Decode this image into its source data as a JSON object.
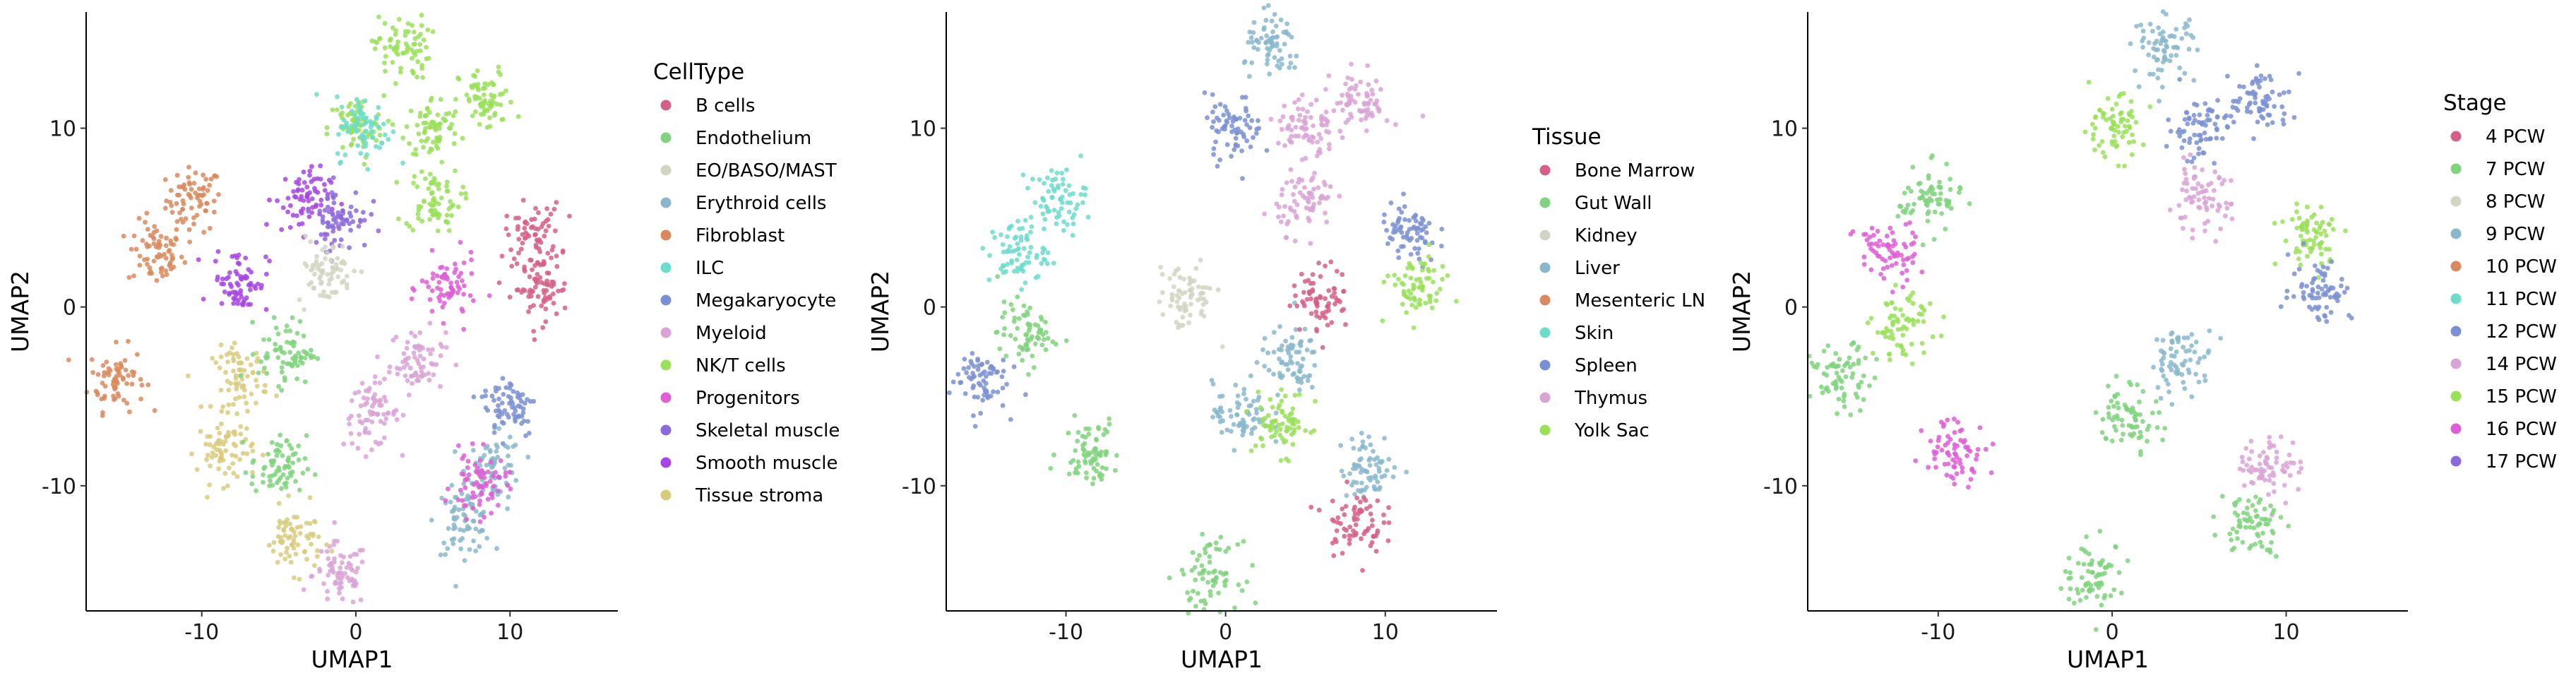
{
  "chart_data": [
    {
      "type": "scatter",
      "xlabel": "UMAP1",
      "ylabel": "UMAP2",
      "xlim": [
        -17.5,
        17.0
      ],
      "ylim": [
        -17.0,
        16.5
      ],
      "xticks": [
        -10,
        0,
        10
      ],
      "yticks": [
        -10,
        0,
        10
      ],
      "xtick_labels": [
        "-10",
        "0",
        "10"
      ],
      "ytick_labels": [
        "-10",
        "0",
        "10"
      ],
      "grid": false,
      "legend": {
        "title": "CellType",
        "placement": "right",
        "items": [
          {
            "label": "B cells",
            "color": "#D65F86"
          },
          {
            "label": "Endothelium",
            "color": "#7FD47D"
          },
          {
            "label": "EO/BASO/MAST",
            "color": "#D2D5C2"
          },
          {
            "label": "Erythroid cells",
            "color": "#8AB8CB"
          },
          {
            "label": "Fibroblast",
            "color": "#D9895D"
          },
          {
            "label": "ILC",
            "color": "#6CDCCB"
          },
          {
            "label": "Megakaryocyte",
            "color": "#7A90D2"
          },
          {
            "label": "Myeloid",
            "color": "#D9A3D6"
          },
          {
            "label": "NK/T cells",
            "color": "#9AE159"
          },
          {
            "label": "Progenitors",
            "color": "#DD5ED6"
          },
          {
            "label": "Skeletal muscle",
            "color": "#8C6ADA"
          },
          {
            "label": "Smooth muscle",
            "color": "#A645E3"
          },
          {
            "label": "Tissue stroma",
            "color": "#D8CB7C"
          }
        ]
      },
      "clusters": [
        {
          "group": "Fibroblast",
          "x": -10.5,
          "y": 6.0
        },
        {
          "group": "Fibroblast",
          "x": -13.0,
          "y": 3.0
        },
        {
          "group": "Fibroblast",
          "x": -15.5,
          "y": -4.0
        },
        {
          "group": "Myeloid",
          "x": 4.0,
          "y": -3.0
        },
        {
          "group": "Myeloid",
          "x": 1.0,
          "y": -6.0
        },
        {
          "group": "Myeloid",
          "x": -1.0,
          "y": -15.0
        },
        {
          "group": "Erythroid cells",
          "x": 9.0,
          "y": -9.0
        },
        {
          "group": "Erythroid cells",
          "x": 7.0,
          "y": -12.0
        },
        {
          "group": "NK/T cells",
          "x": 0.0,
          "y": 10.0
        },
        {
          "group": "NK/T cells",
          "x": 5.0,
          "y": 10.0
        },
        {
          "group": "NK/T cells",
          "x": 5.0,
          "y": 6.0
        },
        {
          "group": "NK/T cells",
          "x": 3.0,
          "y": 14.5
        },
        {
          "group": "NK/T cells",
          "x": 8.5,
          "y": 11.5
        },
        {
          "group": "B cells",
          "x": 11.5,
          "y": 4.0
        },
        {
          "group": "B cells",
          "x": 12.0,
          "y": 1.0
        },
        {
          "group": "Tissue stroma",
          "x": -7.5,
          "y": -4.0
        },
        {
          "group": "Tissue stroma",
          "x": -8.5,
          "y": -8.0
        },
        {
          "group": "Tissue stroma",
          "x": -4.0,
          "y": -13.0
        },
        {
          "group": "Progenitors",
          "x": 6.0,
          "y": 1.0
        },
        {
          "group": "Progenitors",
          "x": 8.0,
          "y": -10.0
        },
        {
          "group": "Smooth muscle",
          "x": -7.5,
          "y": 1.5
        },
        {
          "group": "Smooth muscle",
          "x": -3.5,
          "y": 6.0
        },
        {
          "group": "Endothelium",
          "x": -5.0,
          "y": -9.0
        },
        {
          "group": "Endothelium",
          "x": -4.5,
          "y": -2.5
        },
        {
          "group": "Megakaryocyte",
          "x": 10.0,
          "y": -5.5
        },
        {
          "group": "ILC",
          "x": 0.5,
          "y": 10.0
        },
        {
          "group": "Skeletal muscle",
          "x": -1.0,
          "y": 5.0
        },
        {
          "group": "EO/BASO/MAST",
          "x": -2.0,
          "y": 2.0
        }
      ]
    },
    {
      "type": "scatter",
      "xlabel": "UMAP1",
      "ylabel": "UMAP2",
      "xlim": [
        -17.5,
        17.0
      ],
      "ylim": [
        -17.0,
        16.5
      ],
      "xticks": [
        -10,
        0,
        10
      ],
      "yticks": [
        -10,
        0,
        10
      ],
      "xtick_labels": [
        "-10",
        "0",
        "10"
      ],
      "ytick_labels": [
        "-10",
        "0",
        "10"
      ],
      "grid": false,
      "legend": {
        "title": "Tissue",
        "placement": "right",
        "items": [
          {
            "label": "Bone Marrow",
            "color": "#D65F86"
          },
          {
            "label": "Gut Wall",
            "color": "#7FD47D"
          },
          {
            "label": "Kidney",
            "color": "#D2D5C2"
          },
          {
            "label": "Liver",
            "color": "#8AB8CB"
          },
          {
            "label": "Mesenteric LN",
            "color": "#D9895D"
          },
          {
            "label": "Skin",
            "color": "#6CDCCB"
          },
          {
            "label": "Spleen",
            "color": "#7A90D2"
          },
          {
            "label": "Thymus",
            "color": "#D9A3D6"
          },
          {
            "label": "Yolk Sac",
            "color": "#9AE159"
          }
        ]
      },
      "clusters": [
        {
          "group": "Skin",
          "x": -10.5,
          "y": 6.0
        },
        {
          "group": "Skin",
          "x": -13.0,
          "y": 3.0
        },
        {
          "group": "Gut Wall",
          "x": -12.5,
          "y": -1.5
        },
        {
          "group": "Spleen",
          "x": -15.5,
          "y": -4.0
        },
        {
          "group": "Liver",
          "x": 4.0,
          "y": -3.0
        },
        {
          "group": "Liver",
          "x": 1.0,
          "y": -6.0
        },
        {
          "group": "Bone Marrow",
          "x": 6.0,
          "y": 0.5
        },
        {
          "group": "Liver",
          "x": 9.0,
          "y": -9.0
        },
        {
          "group": "Bone Marrow",
          "x": 8.0,
          "y": -12.0
        },
        {
          "group": "Thymus",
          "x": 5.0,
          "y": 10.0
        },
        {
          "group": "Spleen",
          "x": 0.5,
          "y": 10.0
        },
        {
          "group": "Thymus",
          "x": 5.0,
          "y": 6.0
        },
        {
          "group": "Liver",
          "x": 3.0,
          "y": 14.5
        },
        {
          "group": "Spleen",
          "x": 11.5,
          "y": 4.0
        },
        {
          "group": "Gut Wall",
          "x": -8.5,
          "y": -8.0
        },
        {
          "group": "Gut Wall",
          "x": -1.0,
          "y": -15.0
        },
        {
          "group": "Yolk Sac",
          "x": 3.5,
          "y": -6.5
        },
        {
          "group": "Yolk Sac",
          "x": 12.0,
          "y": 1.0
        },
        {
          "group": "Kidney",
          "x": -2.5,
          "y": 0.5
        },
        {
          "group": "Thymus",
          "x": 8.5,
          "y": 11.5
        }
      ]
    },
    {
      "type": "scatter",
      "xlabel": "UMAP1",
      "ylabel": "UMAP2",
      "xlim": [
        -17.5,
        17.0
      ],
      "ylim": [
        -17.0,
        16.5
      ],
      "xticks": [
        -10,
        0,
        10
      ],
      "yticks": [
        -10,
        0,
        10
      ],
      "xtick_labels": [
        "-10",
        "0",
        "10"
      ],
      "ytick_labels": [
        "-10",
        "0",
        "10"
      ],
      "grid": false,
      "legend": {
        "title": "Stage",
        "placement": "right",
        "items": [
          {
            "label": "4 PCW",
            "color": "#D65F86"
          },
          {
            "label": "7 PCW",
            "color": "#7FD47D"
          },
          {
            "label": "8 PCW",
            "color": "#D2D5C2"
          },
          {
            "label": "9 PCW",
            "color": "#8AB8CB"
          },
          {
            "label": "10 PCW",
            "color": "#D9895D"
          },
          {
            "label": "11 PCW",
            "color": "#6CDCCB"
          },
          {
            "label": "12 PCW",
            "color": "#7A90D2"
          },
          {
            "label": "14 PCW",
            "color": "#D9A3D6"
          },
          {
            "label": "15 PCW",
            "color": "#9AE159"
          },
          {
            "label": "16 PCW",
            "color": "#DD5ED6"
          },
          {
            "label": "17 PCW",
            "color": "#8C6ADA"
          }
        ]
      },
      "clusters": [
        {
          "group": "7 PCW",
          "x": -10.5,
          "y": 6.0
        },
        {
          "group": "16 PCW",
          "x": -13.0,
          "y": 3.0
        },
        {
          "group": "15 PCW",
          "x": -12.0,
          "y": -1.0
        },
        {
          "group": "7 PCW",
          "x": -15.5,
          "y": -4.0
        },
        {
          "group": "16 PCW",
          "x": -9.0,
          "y": -8.0
        },
        {
          "group": "9 PCW",
          "x": 4.0,
          "y": -3.0
        },
        {
          "group": "7 PCW",
          "x": 1.0,
          "y": -6.0
        },
        {
          "group": "14 PCW",
          "x": 9.0,
          "y": -9.0
        },
        {
          "group": "7 PCW",
          "x": 8.0,
          "y": -12.0
        },
        {
          "group": "12 PCW",
          "x": 5.0,
          "y": 10.0
        },
        {
          "group": "15 PCW",
          "x": 0.0,
          "y": 10.0
        },
        {
          "group": "14 PCW",
          "x": 5.0,
          "y": 6.0
        },
        {
          "group": "9 PCW",
          "x": 3.0,
          "y": 14.5
        },
        {
          "group": "15 PCW",
          "x": 11.5,
          "y": 4.0
        },
        {
          "group": "12 PCW",
          "x": 12.0,
          "y": 1.0
        },
        {
          "group": "7 PCW",
          "x": -1.0,
          "y": -15.0
        },
        {
          "group": "12 PCW",
          "x": 8.5,
          "y": 11.5
        }
      ]
    }
  ]
}
